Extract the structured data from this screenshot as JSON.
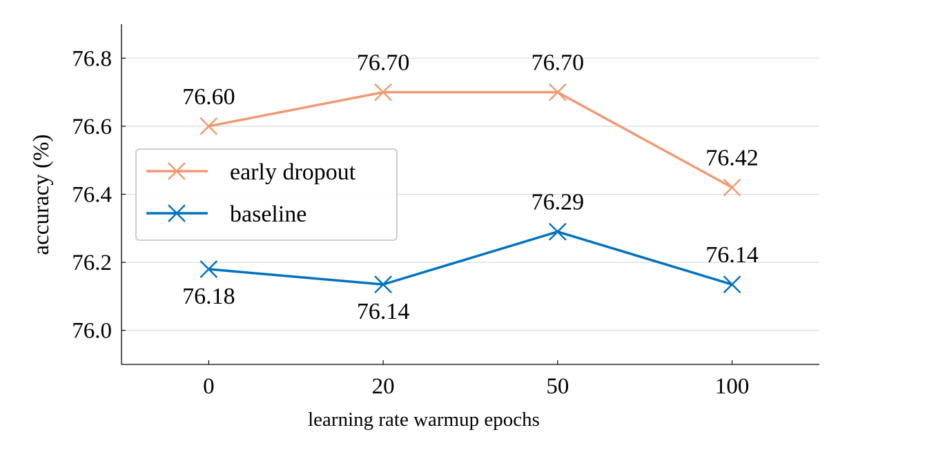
{
  "chart_data": {
    "type": "line",
    "categories": [
      "0",
      "20",
      "50",
      "100"
    ],
    "xlabel": "learning rate warmup epochs",
    "ylabel": "accuracy (%)",
    "ylim": [
      75.9,
      76.9
    ],
    "yticks": [
      "76.0",
      "76.2",
      "76.4",
      "76.6",
      "76.8"
    ],
    "grid": "horizontal",
    "legend_position": "center-left",
    "series": [
      {
        "name": "early dropout",
        "color": "#ee9a73",
        "marker": "x",
        "values": [
          76.6,
          76.7,
          76.7,
          76.42
        ],
        "labels": [
          "76.60",
          "76.70",
          "76.70",
          "76.42"
        ],
        "label_side": [
          "above",
          "above",
          "above",
          "above"
        ]
      },
      {
        "name": "baseline",
        "color": "#0072bd",
        "marker": "x",
        "values": [
          76.18,
          76.135,
          76.29,
          76.135
        ],
        "labels": [
          "76.18",
          "76.14",
          "76.29",
          "76.14"
        ],
        "label_side": [
          "below",
          "below",
          "above",
          "above"
        ]
      }
    ]
  }
}
